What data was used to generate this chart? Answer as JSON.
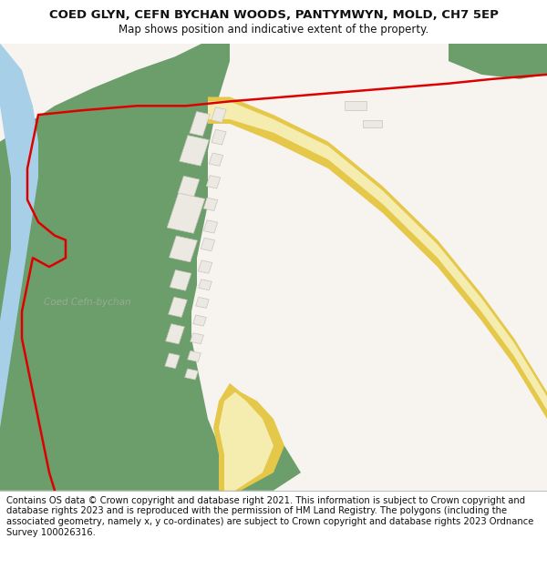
{
  "title": "COED GLYN, CEFN BYCHAN WOODS, PANTYMWYN, MOLD, CH7 5EP",
  "subtitle": "Map shows position and indicative extent of the property.",
  "footer": "Contains OS data © Crown copyright and database right 2021. This information is subject to Crown copyright and database rights 2023 and is reproduced with the permission of HM Land Registry. The polygons (including the associated geometry, namely x, y co-ordinates) are subject to Crown copyright and database rights 2023 Ordnance Survey 100026316.",
  "map_bg": "#f7f4f0",
  "wood_color": "#6b9e6a",
  "road_fill": "#f5edb0",
  "road_border": "#e5c84a",
  "water_color": "#a8cfe8",
  "building_fill": "#ece8e2",
  "building_stroke": "#c8c4bc",
  "plot_stroke": "#dd0000",
  "label_color": "#9aaa94",
  "title_fontsize": 9.5,
  "subtitle_fontsize": 8.5,
  "footer_fontsize": 7.2
}
